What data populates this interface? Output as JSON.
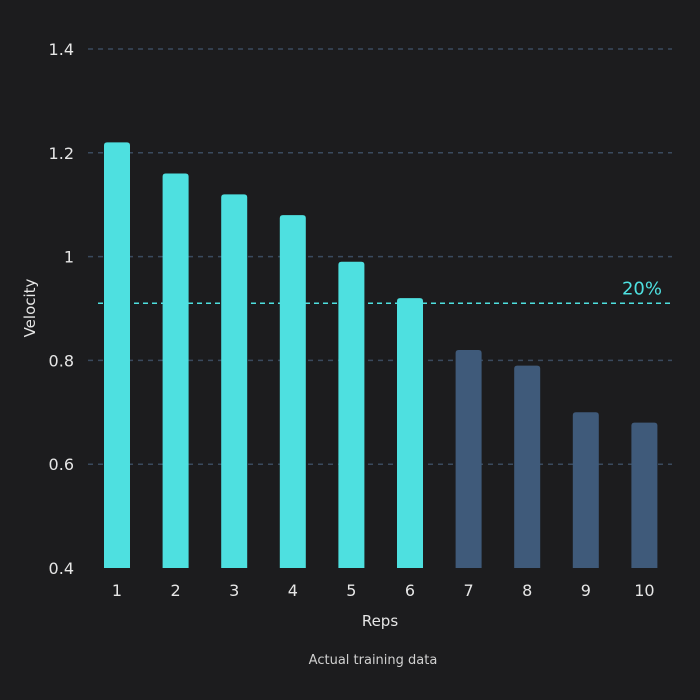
{
  "chart_data": {
    "type": "bar",
    "title": "",
    "xlabel": "Reps",
    "ylabel": "Velocity",
    "caption": "Actual training data",
    "categories": [
      "1",
      "2",
      "3",
      "4",
      "5",
      "6",
      "7",
      "8",
      "9",
      "10"
    ],
    "values": [
      1.22,
      1.16,
      1.12,
      1.08,
      0.99,
      0.92,
      0.82,
      0.79,
      0.7,
      0.68
    ],
    "ylim": [
      0.4,
      1.4
    ],
    "yticks": [
      0.4,
      0.6,
      0.8,
      1.0,
      1.2,
      1.4
    ],
    "ytick_labels": [
      "0.4",
      "0.6",
      "0.8",
      "1",
      "1.2",
      "1.4"
    ],
    "grid": true,
    "threshold": {
      "value": 0.91,
      "label": "20%"
    },
    "colors": {
      "background": "#1c1c1e",
      "above_threshold": "#4ee0e0",
      "below_threshold": "#3f5a7a",
      "threshold_line": "#4ee0e0",
      "grid": "#3a4a5e",
      "text": "#e6e6e6"
    }
  }
}
